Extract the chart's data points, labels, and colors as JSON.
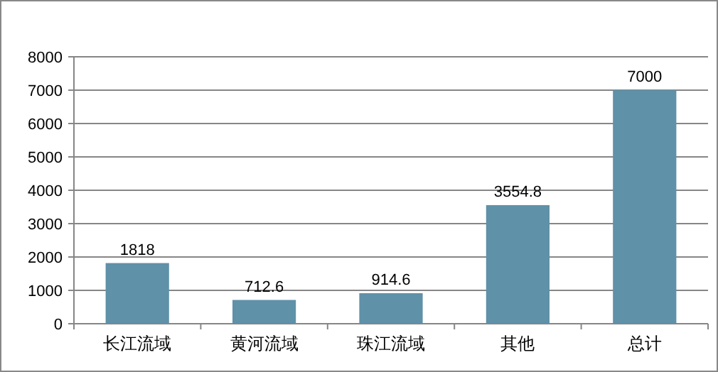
{
  "chart_data": {
    "type": "bar",
    "categories": [
      "长江流域",
      "黄河流域",
      "珠江流域",
      "其他",
      "总计"
    ],
    "values": [
      1818,
      712.6,
      914.6,
      3554.8,
      7000
    ],
    "color": "#5f91a8",
    "ylim": [
      0,
      8000
    ],
    "yticks": [
      0,
      1000,
      2000,
      3000,
      4000,
      5000,
      6000,
      7000,
      8000
    ],
    "grid": "y",
    "data_labels": true
  }
}
